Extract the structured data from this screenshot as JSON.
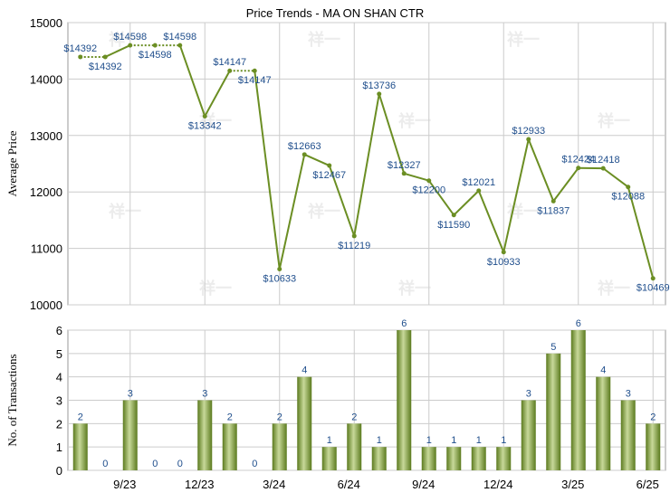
{
  "title": "Price Trends - MA ON SHAN CTR",
  "watermark": "祥一",
  "colors": {
    "line": "#6b8e23",
    "bar_light": "#c8d99a",
    "bar_dark": "#5b7a1e",
    "grid": "#cccccc",
    "label": "#1f4e8c"
  },
  "chart_data": [
    {
      "type": "line",
      "title": "Price Trends - MA ON SHAN CTR",
      "ylabel": "Average Price",
      "ylim": [
        10000,
        15000
      ],
      "yticks": [
        10000,
        11000,
        12000,
        13000,
        14000,
        15000
      ],
      "grid": true,
      "segments": "dotted where consecutive values are equal",
      "x_index": [
        0,
        1,
        2,
        3,
        4,
        5,
        6,
        7,
        8,
        9,
        10,
        11,
        12,
        13,
        14,
        15,
        16,
        17,
        18,
        19,
        20,
        21,
        22,
        23
      ],
      "values": [
        14392,
        14392,
        14598,
        14598,
        14598,
        13342,
        14147,
        14147,
        10633,
        12663,
        12467,
        11219,
        13736,
        12327,
        12200,
        11590,
        12021,
        10933,
        12933,
        11837,
        12424,
        12418,
        12088,
        10469
      ],
      "data_labels": [
        "14392",
        "14392",
        "14598",
        "14598",
        "14598",
        "13342",
        "14147",
        "14147",
        "10633",
        "12663",
        "12467",
        "11219",
        "13736",
        "12327",
        "12200",
        "11590",
        "12021",
        "10933",
        "12933",
        "11837",
        "12424",
        "12418",
        "12088",
        "10469"
      ]
    },
    {
      "type": "bar",
      "ylabel": "No. of Transactions",
      "ylim": [
        0,
        6
      ],
      "yticks": [
        0,
        1,
        2,
        3,
        4,
        5,
        6
      ],
      "grid": true,
      "x_index": [
        0,
        1,
        2,
        3,
        4,
        5,
        6,
        7,
        8,
        9,
        10,
        11,
        12,
        13,
        14,
        15,
        16,
        17,
        18,
        19,
        20,
        21,
        22,
        23
      ],
      "values": [
        2,
        0,
        3,
        0,
        0,
        3,
        2,
        0,
        2,
        4,
        1,
        2,
        1,
        6,
        1,
        1,
        1,
        1,
        3,
        5,
        6,
        4,
        3,
        2
      ],
      "x_tick_labels": [
        "9/23",
        "12/23",
        "3/24",
        "6/24",
        "9/24",
        "12/24",
        "3/25",
        "6/25"
      ],
      "x_tick_positions": [
        2,
        5,
        8,
        11,
        14,
        17,
        20,
        23
      ]
    }
  ]
}
